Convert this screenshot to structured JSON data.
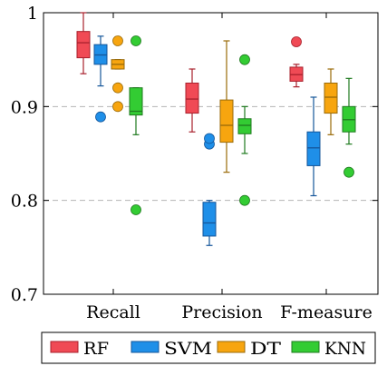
{
  "chart_data": {
    "type": "box",
    "categories": [
      "Recall",
      "Precision",
      "F-measure"
    ],
    "ylim": [
      0.7,
      1.0
    ],
    "yticks": [
      0.7,
      0.8,
      0.9,
      1.0
    ],
    "ytick_labels": [
      "0.7",
      "0.8",
      "0.9",
      "1"
    ],
    "grid": "horizontal dashed at 0.8 and 0.9",
    "legend_position": "bottom",
    "series": [
      {
        "name": "RF",
        "color": "#f04a55",
        "stroke": "#a8202c",
        "boxes": [
          {
            "category": "Recall",
            "whisker_low": 0.935,
            "q1": 0.952,
            "median": 0.968,
            "q3": 0.98,
            "whisker_high": 1.0,
            "outliers": []
          },
          {
            "category": "Precision",
            "whisker_low": 0.873,
            "q1": 0.893,
            "median": 0.908,
            "q3": 0.925,
            "whisker_high": 0.94,
            "outliers": []
          },
          {
            "category": "F-measure",
            "whisker_low": 0.921,
            "q1": 0.927,
            "median": 0.934,
            "q3": 0.942,
            "whisker_high": 0.945,
            "outliers": [
              0.969
            ]
          }
        ]
      },
      {
        "name": "SVM",
        "color": "#1f8fe8",
        "stroke": "#15569a",
        "boxes": [
          {
            "category": "Recall",
            "whisker_low": 0.922,
            "q1": 0.945,
            "median": 0.955,
            "q3": 0.966,
            "whisker_high": 0.975,
            "outliers": [
              0.889
            ]
          },
          {
            "category": "Precision",
            "whisker_low": 0.752,
            "q1": 0.762,
            "median": 0.776,
            "q3": 0.798,
            "whisker_high": 0.8,
            "outliers": [
              0.86,
              0.866
            ]
          },
          {
            "category": "F-measure",
            "whisker_low": 0.805,
            "q1": 0.837,
            "median": 0.856,
            "q3": 0.873,
            "whisker_high": 0.91,
            "outliers": []
          }
        ]
      },
      {
        "name": "DT",
        "color": "#f7a50f",
        "stroke": "#9a6a08",
        "boxes": [
          {
            "category": "Recall",
            "whisker_low": 0.94,
            "q1": 0.94,
            "median": 0.945,
            "q3": 0.95,
            "whisker_high": 0.95,
            "outliers": [
              0.97,
              0.92,
              0.9
            ]
          },
          {
            "category": "Precision",
            "whisker_low": 0.83,
            "q1": 0.862,
            "median": 0.88,
            "q3": 0.907,
            "whisker_high": 0.97,
            "outliers": []
          },
          {
            "category": "F-measure",
            "whisker_low": 0.87,
            "q1": 0.893,
            "median": 0.91,
            "q3": 0.925,
            "whisker_high": 0.94,
            "outliers": []
          }
        ]
      },
      {
        "name": "KNN",
        "color": "#33cc33",
        "stroke": "#1e7a1e",
        "boxes": [
          {
            "category": "Recall",
            "whisker_low": 0.87,
            "q1": 0.891,
            "median": 0.895,
            "q3": 0.92,
            "whisker_high": 0.92,
            "outliers": [
              0.97,
              0.79
            ]
          },
          {
            "category": "Precision",
            "whisker_low": 0.85,
            "q1": 0.871,
            "median": 0.88,
            "q3": 0.887,
            "whisker_high": 0.9,
            "outliers": [
              0.95,
              0.8
            ]
          },
          {
            "category": "F-measure",
            "whisker_low": 0.86,
            "q1": 0.873,
            "median": 0.886,
            "q3": 0.9,
            "whisker_high": 0.93,
            "outliers": [
              0.83
            ]
          }
        ]
      }
    ]
  }
}
